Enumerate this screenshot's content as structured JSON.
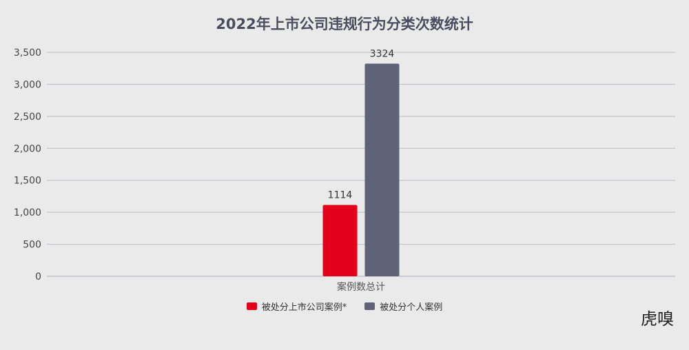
{
  "chart_data": {
    "type": "bar",
    "title": "2022年上市公司违规行为分类次数统计",
    "categories": [
      "案例数总计"
    ],
    "series": [
      {
        "name": "被处分上市公司案例*",
        "values": [
          1114
        ],
        "color": "#e2001a"
      },
      {
        "name": "被处分个人案例",
        "values": [
          3324
        ],
        "color": "#5f6378"
      }
    ],
    "ylim": [
      0,
      3500
    ],
    "yticks": [
      0,
      500,
      1000,
      1500,
      2000,
      2500,
      3000,
      3500
    ],
    "ytick_labels": [
      "0",
      "500",
      "1,000",
      "1,500",
      "2,000",
      "2,500",
      "3,000",
      "3,500"
    ],
    "grid": true,
    "legend_position": "bottom"
  },
  "watermark": {
    "text": "虎嗅"
  }
}
